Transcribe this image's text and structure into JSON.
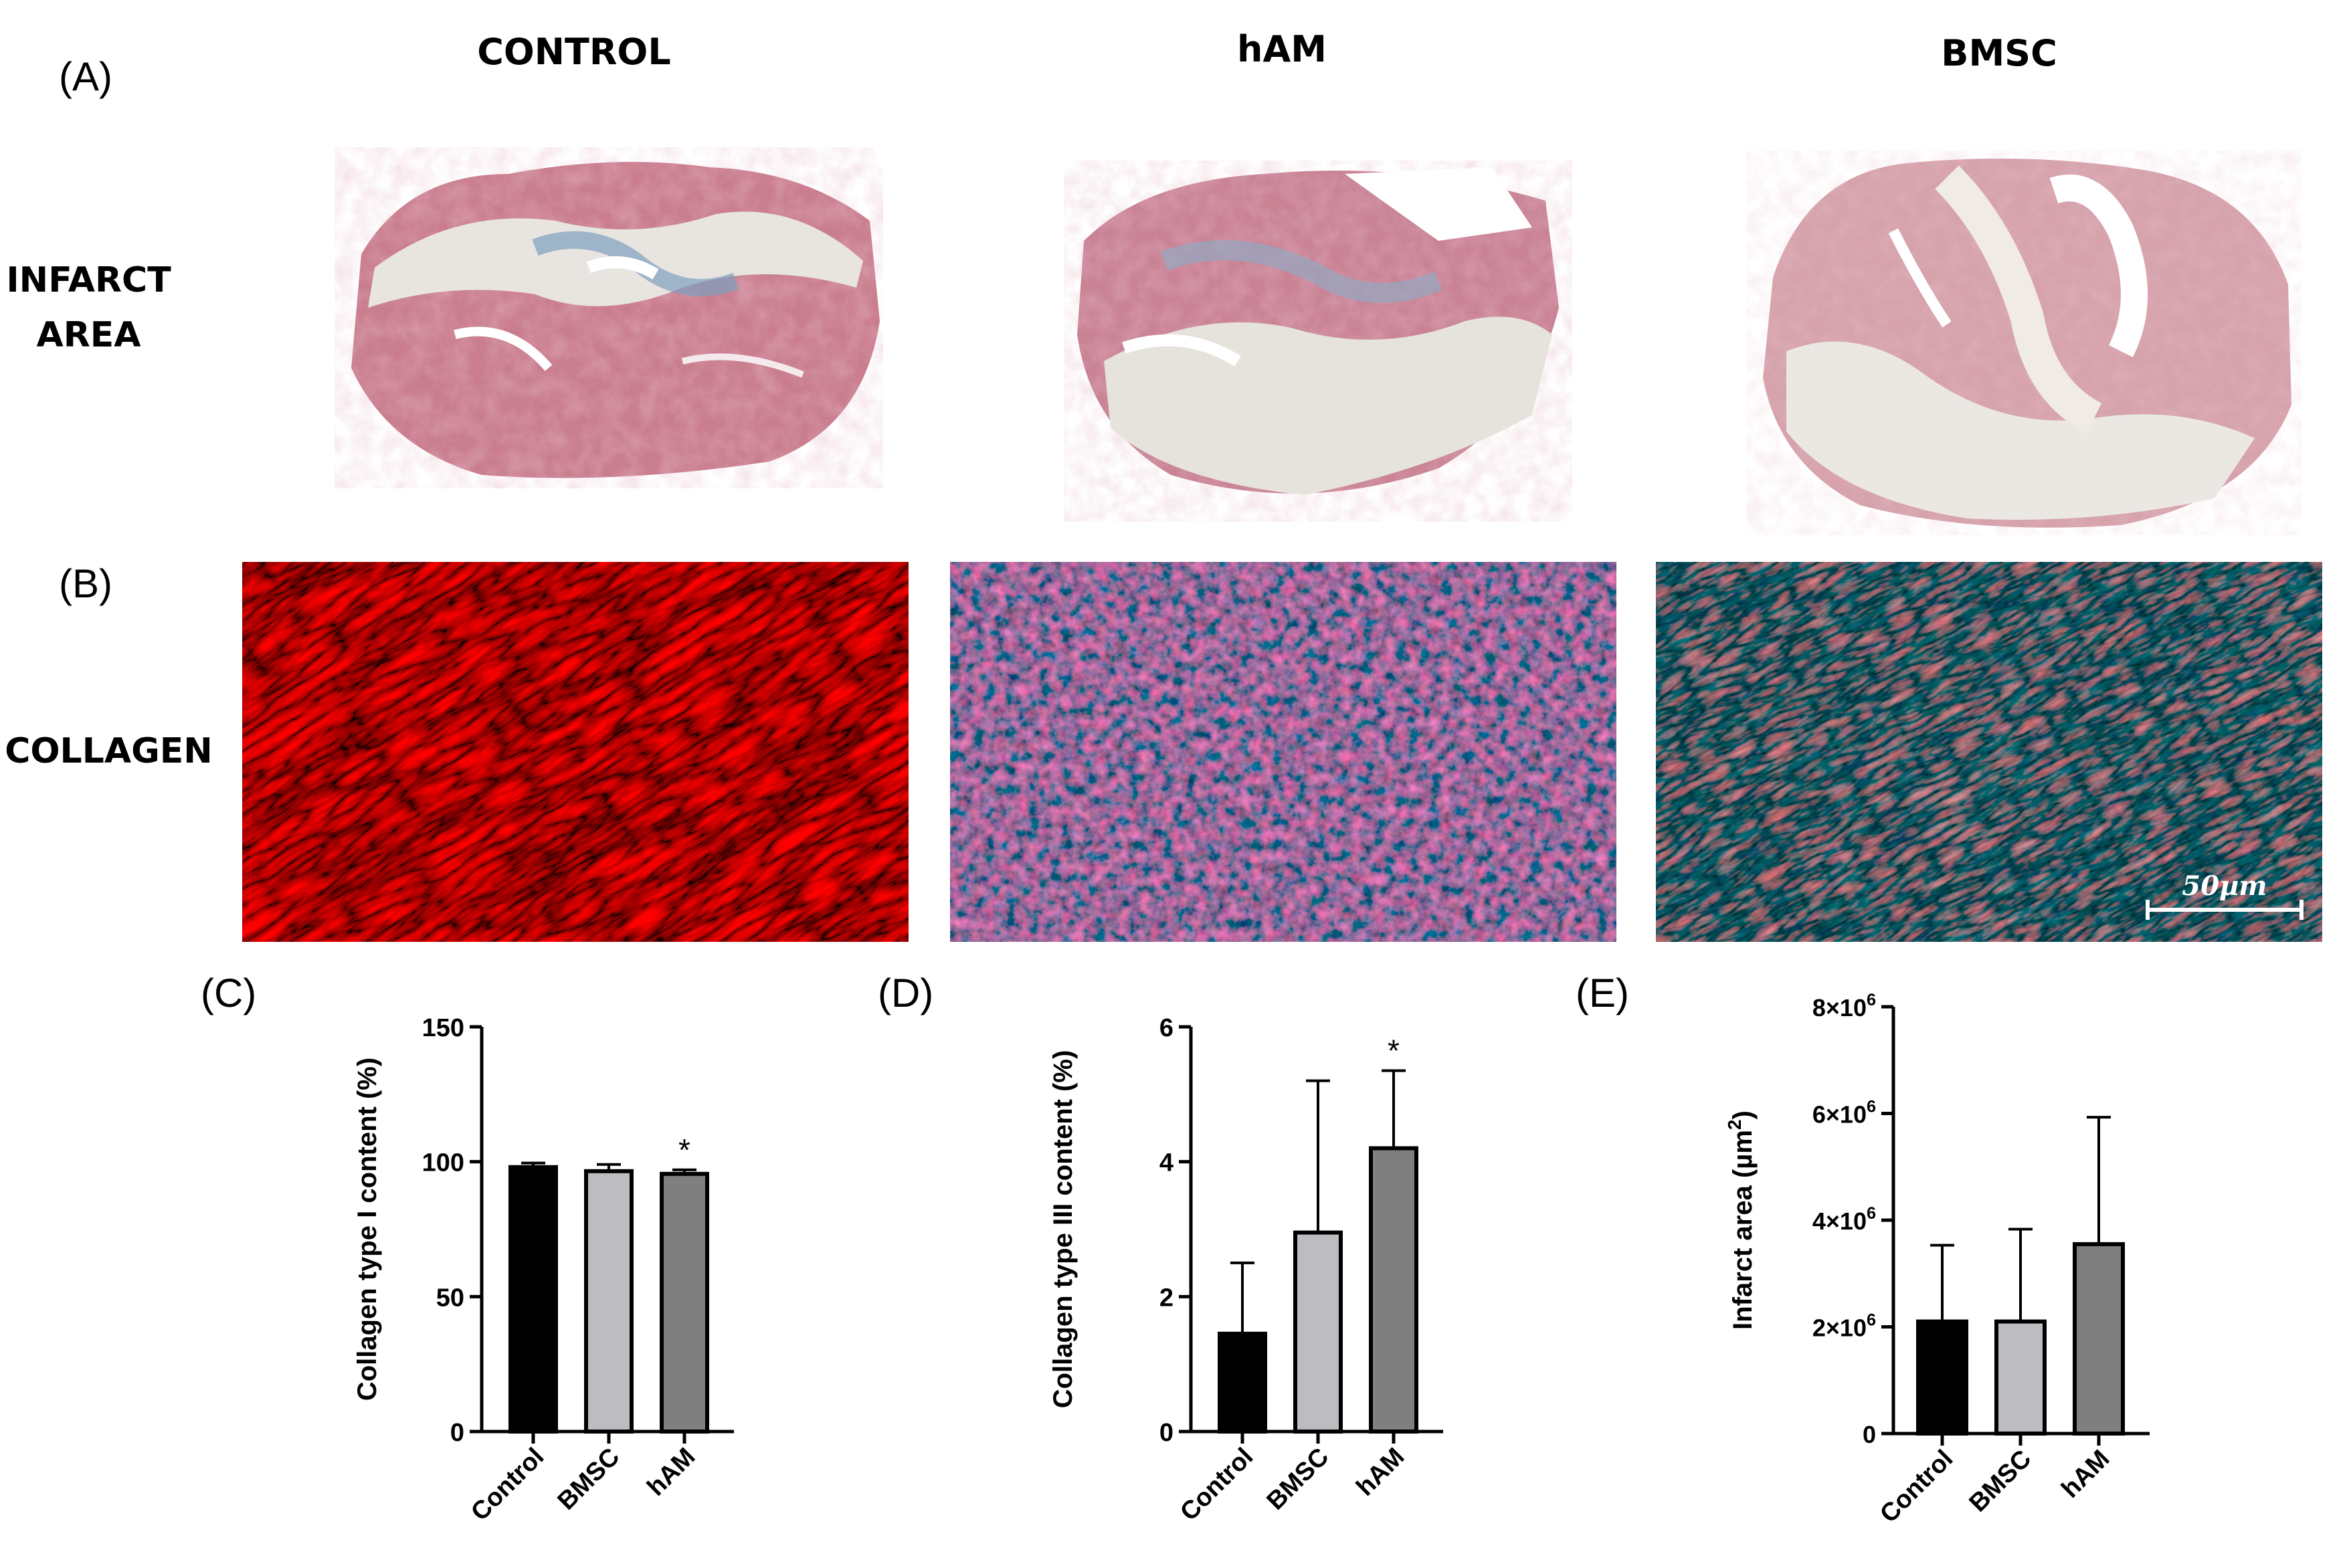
{
  "panels": {
    "A": "(A)",
    "B": "(B)",
    "C": "(C)",
    "D": "(D)",
    "E": "(E)"
  },
  "column_titles": [
    "CONTROL",
    "hAM",
    "BMSC"
  ],
  "row_labels": {
    "infarct_line1": "INFARCT",
    "infarct_line2": "AREA",
    "collagen": "COLLAGEN"
  },
  "scale_bar": "50µm",
  "chart_data": [
    {
      "type": "bar",
      "categories": [
        "Control",
        "BMSC",
        "hAM"
      ],
      "values": [
        98,
        96.5,
        95.5
      ],
      "errors": [
        1.5,
        2.5,
        1.5
      ],
      "significance": [
        "",
        "",
        "*"
      ],
      "ylabel": "Collagen type I content (%)",
      "xlabel": "",
      "ylim": [
        0,
        150
      ],
      "yticks": [
        0,
        50,
        100,
        150
      ],
      "ytick_labels": [
        "0",
        "50",
        "100",
        "150"
      ],
      "colors": [
        "#000000",
        "#bdbdc1",
        "#7f7f7f"
      ]
    },
    {
      "type": "bar",
      "categories": [
        "Control",
        "BMSC",
        "hAM"
      ],
      "values": [
        1.45,
        2.95,
        4.2
      ],
      "errors": [
        1.05,
        2.25,
        1.15
      ],
      "significance": [
        "",
        "",
        "*"
      ],
      "ylabel": "Collagen type III content (%)",
      "xlabel": "",
      "ylim": [
        0,
        6
      ],
      "yticks": [
        0,
        2,
        4,
        6
      ],
      "ytick_labels": [
        "0",
        "2",
        "4",
        "6"
      ],
      "colors": [
        "#000000",
        "#bdbdc1",
        "#7f7f7f"
      ]
    },
    {
      "type": "bar",
      "categories": [
        "Control",
        "BMSC",
        "hAM"
      ],
      "values": [
        2100000,
        2100000,
        3550000
      ],
      "errors": [
        1430000,
        1730000,
        2380000
      ],
      "significance": [
        "",
        "",
        ""
      ],
      "ylabel": "Infarct area (µm²)",
      "xlabel": "",
      "ylim": [
        0,
        8000000
      ],
      "yticks": [
        0,
        2000000,
        4000000,
        6000000,
        8000000
      ],
      "ytick_labels": [
        "0",
        "2×10⁶",
        "4×10⁶",
        "6×10⁶",
        "8×10⁶"
      ],
      "colors": [
        "#000000",
        "#bdbdc1",
        "#7f7f7f"
      ]
    }
  ]
}
